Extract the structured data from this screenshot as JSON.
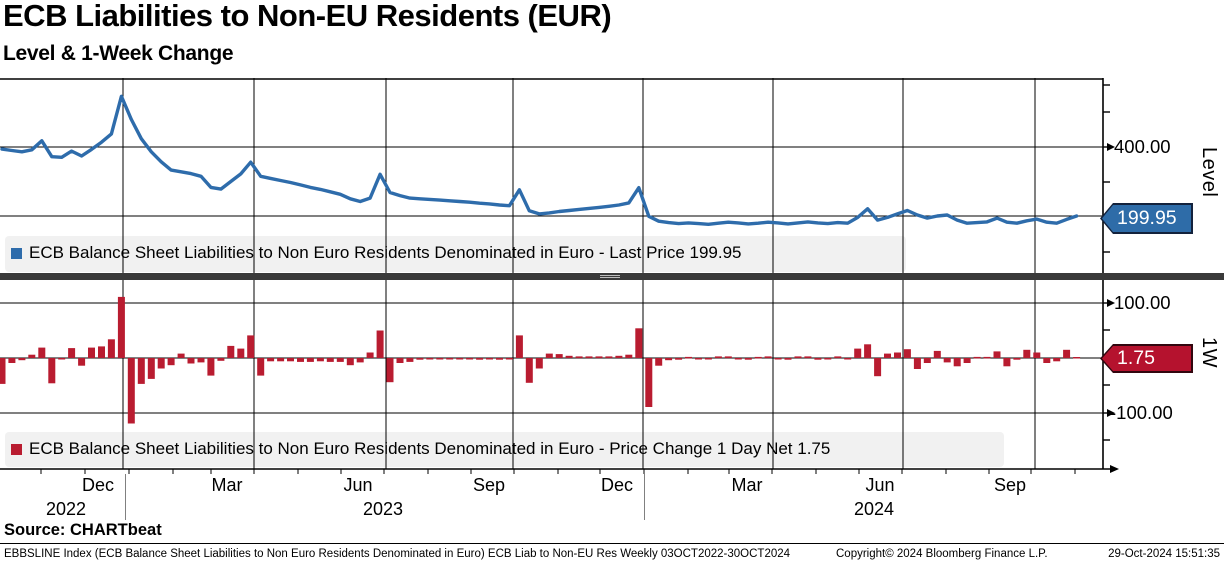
{
  "header": {
    "title": "ECB Liabilities to Non-EU Residents (EUR)",
    "subtitle": "Level & 1-Week Change"
  },
  "panels": {
    "level": {
      "legend_label": "ECB Balance Sheet Liabilities to Non Euro Residents Denominated in Euro - Last Price 199.95",
      "axis_label": "Level",
      "badge": "199.95",
      "ticks": [
        "400.00"
      ]
    },
    "change": {
      "legend_label": "ECB Balance Sheet Liabilities to Non Euro Residents Denominated in Euro - Price Change 1 Day Net 1.75",
      "axis_label": "1W",
      "badge": "1.75",
      "ticks": [
        "100.00",
        "-100.00"
      ]
    }
  },
  "x_axis": {
    "months": [
      "Dec",
      "Mar",
      "Jun",
      "Sep",
      "Dec",
      "Mar",
      "Jun",
      "Sep"
    ],
    "years": [
      "2022",
      "2023",
      "2024"
    ]
  },
  "source": "Source: CHARTbeat",
  "footer": {
    "left": "EBBSLINE Index (ECB Balance Sheet Liabilities to Non Euro Residents Denominated in Euro) ECB Liab to Non-EU Res  Weekly 03OCT2022-30OCT2024",
    "center": "Copyright© 2024 Bloomberg Finance L.P.",
    "right": "29-Oct-2024 15:51:35"
  },
  "colors": {
    "line_blue": "#2e6cab",
    "badge_blue": "#2e6ca8",
    "badge_blue_border": "#13223c",
    "bar_red": "#b91c30",
    "badge_red": "#b5122e",
    "badge_red_border": "#32060f",
    "separator": "#3a3a3a",
    "legend_bg": "#f1f1f1",
    "grid": "#000000"
  },
  "chart_data": [
    {
      "type": "line",
      "name": "ECB Balance Sheet Liabilities to Non Euro Residents Denominated in Euro",
      "metric": "Last Price",
      "last_value": 199.95,
      "frequency": "weekly",
      "x_start": "03OCT2022",
      "x_end": "30OCT2024",
      "ylabel": "Level",
      "ylim": [
        35,
        600
      ],
      "axis_ticks": [
        400,
        200
      ],
      "color": "#2e6cab",
      "values": [
        394,
        390,
        386,
        392,
        418,
        372,
        370,
        388,
        374,
        393,
        414,
        438,
        547,
        480,
        424,
        386,
        357,
        333,
        328,
        323,
        315,
        283,
        278,
        300,
        322,
        356,
        315,
        309,
        303,
        297,
        290,
        283,
        277,
        270,
        263,
        250,
        242,
        252,
        321,
        268,
        259,
        252,
        250,
        248,
        246,
        244,
        242,
        240,
        237,
        235,
        232,
        230,
        276,
        215,
        206,
        209,
        213,
        216,
        219,
        222,
        225,
        228,
        232,
        238,
        282,
        199,
        185,
        181,
        178,
        180,
        178,
        176,
        179,
        182,
        180,
        177,
        179,
        182,
        180,
        177,
        180,
        183,
        180,
        178,
        181,
        179,
        196,
        221,
        188,
        196,
        206,
        216,
        203,
        194,
        200,
        203,
        188,
        179,
        181,
        183,
        194,
        182,
        179,
        186,
        191,
        182,
        179,
        190,
        199.95
      ]
    },
    {
      "type": "bar",
      "name": "ECB Balance Sheet Liabilities to Non Euro Residents Denominated in Euro",
      "metric": "Price Change 1 Day Net",
      "last_value": 1.75,
      "frequency": "weekly",
      "x_start": "03OCT2022",
      "x_end": "30OCT2024",
      "ylabel": "1W",
      "ylim": [
        -203,
        140
      ],
      "axis_ticks": [
        100,
        0,
        -100
      ],
      "color": "#b91c30",
      "values": [
        -47,
        -9,
        -4,
        6,
        19,
        -46,
        -2,
        18,
        -14,
        19,
        21,
        34,
        111,
        -119,
        -47,
        -38,
        -19,
        -13,
        8,
        -10,
        -8,
        -32,
        -5,
        22,
        17,
        41,
        -32,
        -6,
        -6,
        -6,
        -7,
        -7,
        -6,
        -7,
        -7,
        -13,
        -8,
        10,
        50,
        -44,
        -9,
        -7,
        -3,
        -2,
        -2,
        -2,
        -2,
        -2,
        -3,
        -2,
        -3,
        -2,
        41,
        -45,
        -19,
        8,
        7,
        4,
        3,
        3,
        3,
        3,
        4,
        6,
        54,
        -89,
        -14,
        -4,
        -3,
        2,
        -2,
        -2,
        3,
        3,
        -2,
        -3,
        2,
        3,
        -2,
        -3,
        3,
        3,
        -3,
        -2,
        3,
        -2,
        17,
        25,
        -33,
        8,
        10,
        16,
        -20,
        -9,
        13,
        -8,
        -15,
        -9,
        2,
        2,
        12,
        -15,
        -3,
        15,
        10,
        -9,
        -6,
        15,
        1.75
      ]
    }
  ]
}
